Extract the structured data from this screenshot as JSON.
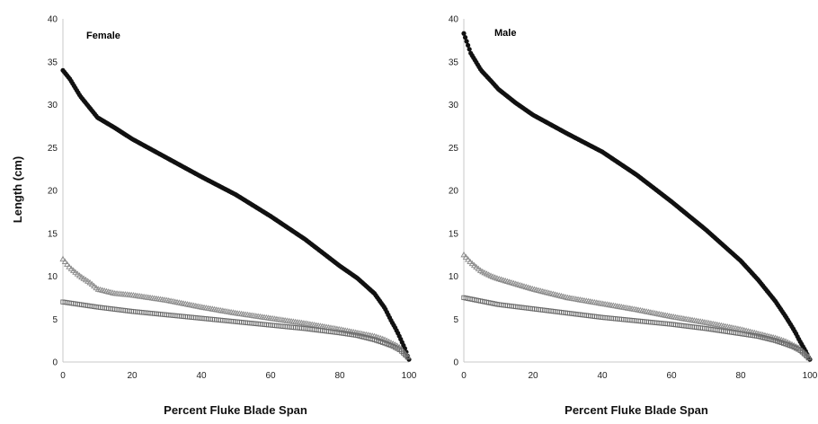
{
  "chart_data": [
    {
      "type": "scatter",
      "title": "Female",
      "xlabel": "Percent Fluke Blade Span",
      "ylabel": "Length (cm)",
      "xlim": [
        0,
        100
      ],
      "ylim": [
        0,
        40
      ],
      "x_ticks": [
        "0",
        "20",
        "40",
        "60",
        "80",
        "100"
      ],
      "y_ticks": [
        "0",
        "5",
        "10",
        "15",
        "20",
        "25",
        "30",
        "35",
        "40"
      ],
      "grid": false,
      "series": [
        {
          "marker": "filled-circle",
          "color": "#111111",
          "x": [
            0,
            2,
            5,
            8,
            10,
            15,
            20,
            30,
            40,
            50,
            60,
            70,
            80,
            85,
            90,
            93,
            95,
            96,
            97,
            98,
            99,
            99.5,
            100
          ],
          "y": [
            34,
            33,
            31,
            29.5,
            28.5,
            27.3,
            26,
            23.8,
            21.6,
            19.5,
            17,
            14.3,
            11.2,
            9.8,
            8,
            6.3,
            4.7,
            4,
            3.2,
            2.3,
            1.4,
            0.8,
            0.3
          ]
        },
        {
          "marker": "open-triangle",
          "color": "#8a8a8a",
          "x": [
            0,
            2,
            5,
            8,
            10,
            15,
            20,
            30,
            40,
            50,
            60,
            70,
            80,
            85,
            90,
            93,
            95,
            97,
            98,
            99,
            100
          ],
          "y": [
            12,
            11,
            10,
            9.2,
            8.5,
            8,
            7.8,
            7.2,
            6.4,
            5.7,
            5.1,
            4.5,
            3.8,
            3.4,
            3,
            2.6,
            2.2,
            1.8,
            1.4,
            0.9,
            0.5
          ]
        },
        {
          "marker": "open-square",
          "color": "#6a6a6a",
          "x": [
            0,
            5,
            10,
            20,
            30,
            40,
            50,
            60,
            70,
            80,
            85,
            90,
            93,
            95,
            97,
            98,
            99,
            100
          ],
          "y": [
            7,
            6.7,
            6.4,
            5.9,
            5.5,
            5.1,
            4.7,
            4.3,
            3.9,
            3.4,
            3.1,
            2.6,
            2.2,
            1.9,
            1.5,
            1.2,
            0.8,
            0.4
          ]
        }
      ]
    },
    {
      "type": "scatter",
      "title": "Male",
      "xlabel": "Percent Fluke Blade Span",
      "ylabel": "",
      "xlim": [
        0,
        100
      ],
      "ylim": [
        0,
        40
      ],
      "x_ticks": [
        "0",
        "20",
        "40",
        "60",
        "80",
        "100"
      ],
      "y_ticks": [
        "0",
        "5",
        "10",
        "15",
        "20",
        "25",
        "30",
        "35",
        "40"
      ],
      "grid": false,
      "series": [
        {
          "marker": "filled-circle",
          "color": "#111111",
          "x": [
            0,
            2,
            5,
            8,
            10,
            15,
            20,
            30,
            40,
            50,
            60,
            70,
            80,
            85,
            90,
            93,
            95,
            96,
            97,
            98,
            99,
            99.5,
            100
          ],
          "y": [
            38.3,
            36,
            34,
            32.7,
            31.8,
            30.2,
            28.8,
            26.6,
            24.5,
            21.8,
            18.7,
            15.4,
            11.8,
            9.6,
            7.1,
            5.3,
            4,
            3.3,
            2.5,
            1.8,
            1.1,
            0.6,
            0.3
          ]
        },
        {
          "marker": "open-triangle",
          "color": "#8a8a8a",
          "x": [
            0,
            2,
            5,
            8,
            10,
            15,
            20,
            30,
            40,
            50,
            60,
            70,
            80,
            85,
            90,
            93,
            95,
            97,
            98,
            99,
            100
          ],
          "y": [
            12.5,
            11.6,
            10.6,
            10,
            9.7,
            9.1,
            8.5,
            7.5,
            6.8,
            6.1,
            5.3,
            4.6,
            3.8,
            3.3,
            2.8,
            2.4,
            2,
            1.6,
            1.2,
            0.8,
            0.4
          ]
        },
        {
          "marker": "open-square",
          "color": "#6a6a6a",
          "x": [
            0,
            5,
            10,
            20,
            30,
            40,
            50,
            60,
            70,
            80,
            85,
            90,
            93,
            95,
            97,
            98,
            99,
            100
          ],
          "y": [
            7.5,
            7.1,
            6.7,
            6.2,
            5.7,
            5.2,
            4.8,
            4.4,
            3.9,
            3.3,
            3,
            2.5,
            2.1,
            1.8,
            1.4,
            1.1,
            0.7,
            0.3
          ]
        }
      ]
    }
  ]
}
